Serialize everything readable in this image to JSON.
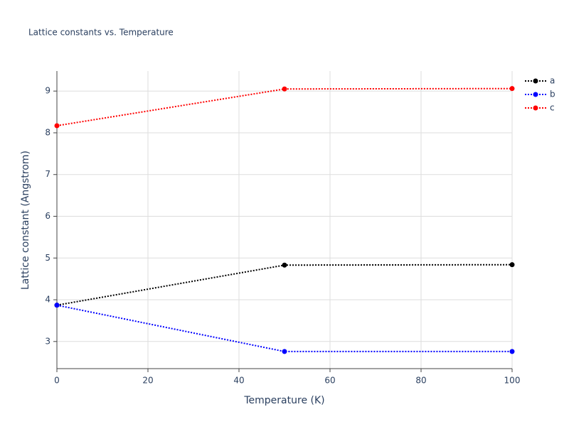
{
  "chart_data": {
    "type": "line",
    "title": "Lattice constants vs. Temperature",
    "x_label": "Temperature (K)",
    "y_label": "Lattice constant (Angstrom)",
    "x": [
      0,
      50,
      100
    ],
    "series": [
      {
        "name": "a",
        "color": "#000000",
        "values": [
          3.87,
          4.83,
          4.84
        ]
      },
      {
        "name": "b",
        "color": "#0000ff",
        "values": [
          3.87,
          2.76,
          2.76
        ]
      },
      {
        "name": "c",
        "color": "#ff0000",
        "values": [
          8.17,
          9.05,
          9.06
        ]
      }
    ],
    "xlim": [
      0,
      100
    ],
    "xticks": [
      0,
      20,
      40,
      60,
      80,
      100
    ],
    "ylim": [
      2.35,
      9.48
    ],
    "yticks": [
      3,
      4,
      5,
      6,
      7,
      8,
      9
    ],
    "grid": true,
    "legend": "top-right"
  }
}
